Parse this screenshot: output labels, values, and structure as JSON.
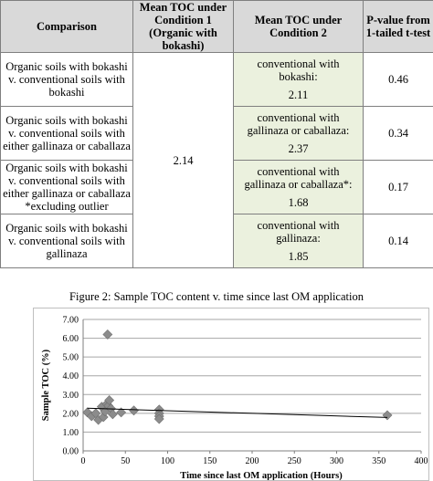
{
  "table": {
    "headers": [
      "Comparison",
      "Mean TOC under\nCondition 1\n(Organic with\nbokashi)",
      "Mean TOC under\nCondition 2",
      "P-value from\n1-tailed t-test"
    ],
    "condition1_mean": "2.14",
    "rows": [
      {
        "comparison": "Organic soils with bokashi\nv. conventional soils with\nbokashi",
        "cond2_text": "conventional with\nbokashi:",
        "cond2_value": "2.11",
        "p_value": "0.46"
      },
      {
        "comparison": "Organic soils with bokashi\nv. conventional soils with\neither gallinaza or caballaza",
        "cond2_text": "conventional with\ngallinaza or caballaza:",
        "cond2_value": "2.37",
        "p_value": "0.34"
      },
      {
        "comparison": "Organic soils with bokashi\nv. conventional soils with\neither gallinaza or caballaza\n*excluding outlier",
        "cond2_text": "conventional with\ngallinaza or caballaza*:",
        "cond2_value": "1.68",
        "p_value": "0.17"
      },
      {
        "comparison": "Organic soils with bokashi\nv. conventional soils with\ngallinaza",
        "cond2_text": "conventional with\ngallinaza:",
        "cond2_value": "1.85",
        "p_value": "0.14"
      }
    ]
  },
  "figure": {
    "caption": "Figure 2: Sample TOC content v. time since last OM application"
  },
  "chart_data": {
    "type": "scatter",
    "title": "",
    "xlabel": "Time since last OM application (Hours)",
    "ylabel": "Sample TOC (%)",
    "xlim": [
      0,
      400
    ],
    "ylim": [
      0,
      7
    ],
    "xticks": [
      "0",
      "50",
      "100",
      "150",
      "200",
      "250",
      "300",
      "350",
      "400"
    ],
    "yticks": [
      "0.00",
      "1.00",
      "2.00",
      "3.00",
      "4.00",
      "5.00",
      "6.00",
      "7.00"
    ],
    "grid": "horizontal",
    "marker_color": "#8c8c8c",
    "trendline": {
      "x": [
        5,
        360
      ],
      "y": [
        2.27,
        1.78
      ]
    },
    "points": [
      {
        "x": 5,
        "y": 2.05
      },
      {
        "x": 10,
        "y": 1.85
      },
      {
        "x": 15,
        "y": 2.0
      },
      {
        "x": 18,
        "y": 1.65
      },
      {
        "x": 22,
        "y": 2.35
      },
      {
        "x": 24,
        "y": 1.8
      },
      {
        "x": 26,
        "y": 2.1
      },
      {
        "x": 28,
        "y": 2.5
      },
      {
        "x": 29,
        "y": 6.2
      },
      {
        "x": 30,
        "y": 2.4
      },
      {
        "x": 31,
        "y": 2.7
      },
      {
        "x": 33,
        "y": 2.25
      },
      {
        "x": 35,
        "y": 1.95
      },
      {
        "x": 45,
        "y": 2.05
      },
      {
        "x": 60,
        "y": 2.15
      },
      {
        "x": 90,
        "y": 2.2
      },
      {
        "x": 90,
        "y": 2.0
      },
      {
        "x": 90,
        "y": 1.85
      },
      {
        "x": 90,
        "y": 1.7
      },
      {
        "x": 360,
        "y": 1.9
      }
    ]
  }
}
